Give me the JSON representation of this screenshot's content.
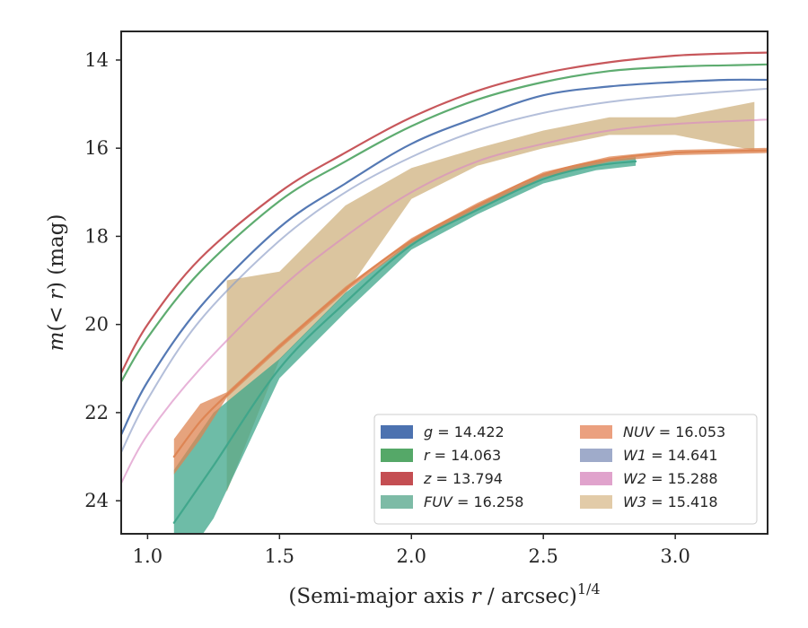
{
  "chart_data": {
    "type": "line",
    "xlabel_text": "(Semi-major axis ",
    "xlabel_var": "r",
    "xlabel_text2": " / arcsec)",
    "xlabel_sup": "1/4",
    "ylabel_m": "m",
    "ylabel_paren": "(< ",
    "ylabel_r": "r",
    "ylabel_close": ") (mag)",
    "xlim": [
      0.9,
      3.35
    ],
    "ylim": [
      24.75,
      13.35
    ],
    "y_inverted": true,
    "x_ticks": [
      1.0,
      1.5,
      2.0,
      2.5,
      3.0
    ],
    "x_tick_labels": [
      "1.0",
      "1.5",
      "2.0",
      "2.5",
      "3.0"
    ],
    "y_ticks": [
      14,
      16,
      18,
      20,
      22,
      24
    ],
    "y_tick_labels": [
      "14",
      "16",
      "18",
      "20",
      "22",
      "24"
    ],
    "grid": false,
    "legend_position": "lower-right",
    "series": [
      {
        "name": "g",
        "band": "g",
        "value": "14.422",
        "color": "#4c72b0",
        "x": [
          0.9,
          1.0,
          1.2,
          1.5,
          1.75,
          2.0,
          2.25,
          2.5,
          2.75,
          3.0,
          3.2,
          3.35
        ],
        "y": [
          22.5,
          21.3,
          19.6,
          17.8,
          16.8,
          15.9,
          15.3,
          14.8,
          14.6,
          14.5,
          14.45,
          14.45
        ]
      },
      {
        "name": "r",
        "band": "r",
        "value": "14.063",
        "color": "#55a868",
        "x": [
          0.9,
          1.0,
          1.2,
          1.5,
          1.75,
          2.0,
          2.25,
          2.5,
          2.75,
          3.0,
          3.2,
          3.35
        ],
        "y": [
          21.3,
          20.3,
          18.8,
          17.2,
          16.3,
          15.5,
          14.9,
          14.5,
          14.25,
          14.15,
          14.12,
          14.1
        ]
      },
      {
        "name": "z",
        "band": "z",
        "value": "13.794",
        "color": "#c44e52",
        "x": [
          0.9,
          1.0,
          1.2,
          1.5,
          1.75,
          2.0,
          2.25,
          2.5,
          2.75,
          3.0,
          3.2,
          3.35
        ],
        "y": [
          21.1,
          20.0,
          18.5,
          17.0,
          16.1,
          15.3,
          14.7,
          14.3,
          14.05,
          13.9,
          13.85,
          13.83
        ]
      },
      {
        "name": "FUV",
        "band": "FUV",
        "value": "16.258",
        "color": "#3ea58a",
        "x": [
          1.1,
          1.25,
          1.5,
          1.75,
          2.0,
          2.25,
          2.5,
          2.7,
          2.85
        ],
        "y": [
          24.5,
          23.2,
          21.0,
          19.5,
          18.2,
          17.4,
          16.7,
          16.4,
          16.3
        ]
      },
      {
        "name": "NUV",
        "band": "NUV",
        "value": "16.053",
        "color": "#dd8452",
        "x": [
          1.1,
          1.2,
          1.3,
          1.5,
          1.75,
          2.0,
          2.25,
          2.5,
          2.75,
          3.0,
          3.35
        ],
        "y": [
          23.0,
          22.2,
          21.6,
          20.5,
          19.2,
          18.1,
          17.3,
          16.6,
          16.25,
          16.1,
          16.05
        ]
      },
      {
        "name": "W1",
        "band": "W1",
        "value": "14.641",
        "color": "#8c9dc6",
        "x": [
          0.9,
          1.0,
          1.2,
          1.5,
          1.75,
          2.0,
          2.25,
          2.5,
          2.75,
          3.0,
          3.35
        ],
        "y": [
          22.9,
          21.7,
          19.9,
          18.1,
          17.0,
          16.2,
          15.6,
          15.2,
          14.95,
          14.8,
          14.65
        ]
      },
      {
        "name": "W2",
        "band": "W2",
        "value": "15.288",
        "color": "#da8bc3",
        "x": [
          0.9,
          1.0,
          1.2,
          1.5,
          1.75,
          2.0,
          2.25,
          2.5,
          2.75,
          3.0,
          3.35
        ],
        "y": [
          23.6,
          22.5,
          21.0,
          19.2,
          18.0,
          17.0,
          16.3,
          15.9,
          15.6,
          15.45,
          15.35
        ]
      },
      {
        "name": "W3",
        "band": "W3",
        "value": "15.418",
        "color": "#d5bb8e",
        "x": [
          1.3,
          1.5,
          1.75,
          2.0,
          2.25,
          2.5,
          2.75,
          3.0,
          3.3
        ],
        "y": [
          21.4,
          19.8,
          18.3,
          16.8,
          16.2,
          15.8,
          15.5,
          15.5,
          15.5
        ]
      }
    ],
    "legend_left": [
      {
        "band": "g",
        "value": "14.422",
        "color": "#4c72b0"
      },
      {
        "band": "r",
        "value": "14.063",
        "color": "#55a868"
      },
      {
        "band": "z",
        "value": "13.794",
        "color": "#c44e52"
      },
      {
        "band": "FUV",
        "value": "16.258",
        "color": "#7dbba6"
      }
    ],
    "legend_right": [
      {
        "band": "NUV",
        "value": "16.053",
        "color": "#eba07f"
      },
      {
        "band": "W1",
        "value": "14.641",
        "color": "#9fabca"
      },
      {
        "band": "W2",
        "value": "15.288",
        "color": "#e0a3cc"
      },
      {
        "band": "W3",
        "value": "15.418",
        "color": "#e2cba8"
      }
    ]
  }
}
